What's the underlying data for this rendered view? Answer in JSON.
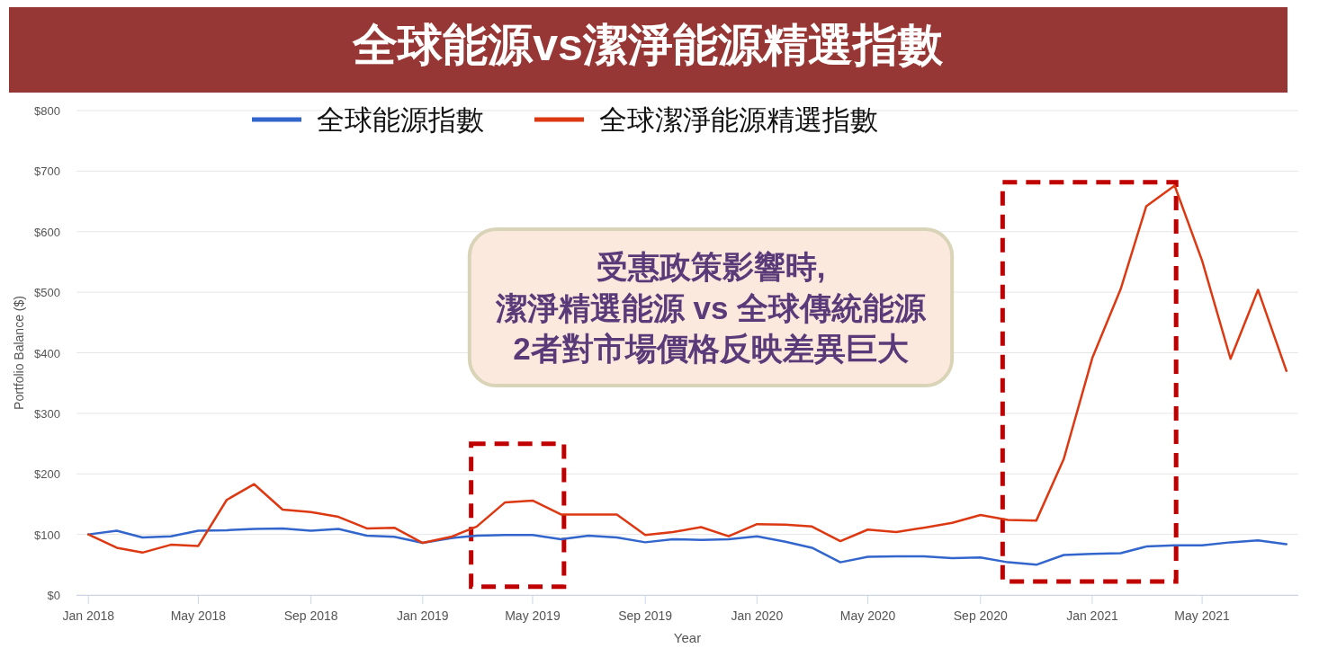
{
  "chart_data": {
    "type": "line",
    "title": "全球能源vs潔淨能源精選指數",
    "xlabel": "Year",
    "ylabel": "Portfolio Balance ($)",
    "annotations": [
      "受惠政策影響時,\n潔淨精選能源 vs 全球傳統能源\n2者對市場價格反映差異巨大"
    ],
    "x": [
      "2018-01",
      "2018-02",
      "2018-03",
      "2018-04",
      "2018-05",
      "2018-06",
      "2018-07",
      "2018-08",
      "2018-09",
      "2018-10",
      "2018-11",
      "2018-12",
      "2019-01",
      "2019-02",
      "2019-03",
      "2019-04",
      "2019-05",
      "2019-06",
      "2019-07",
      "2019-08",
      "2019-09",
      "2019-10",
      "2019-11",
      "2019-12",
      "2020-01",
      "2020-02",
      "2020-03",
      "2020-04",
      "2020-05",
      "2020-06",
      "2020-07",
      "2020-08",
      "2020-09",
      "2020-10",
      "2020-11",
      "2020-12",
      "2021-01",
      "2021-02",
      "2021-03",
      "2021-04",
      "2021-05",
      "2021-06",
      "2021-07",
      "2021-08"
    ],
    "series": [
      {
        "name": "全球能源指數",
        "color": "#3366cc",
        "values": [
          100,
          106,
          95,
          97,
          106,
          107,
          109,
          110,
          106,
          109,
          98,
          96,
          86,
          94,
          98,
          99,
          99,
          92,
          98,
          95,
          87,
          92,
          91,
          92,
          97,
          88,
          78,
          54,
          63,
          64,
          64,
          61,
          62,
          54,
          50,
          66,
          68,
          69,
          80,
          82,
          82,
          87,
          90,
          84
        ]
      },
      {
        "name": "全球潔淨能源精選指數",
        "color": "#dc3912",
        "values": [
          100,
          78,
          70,
          83,
          81,
          157,
          183,
          141,
          137,
          129,
          110,
          111,
          86,
          96,
          113,
          153,
          156,
          133,
          133,
          133,
          99,
          104,
          112,
          97,
          117,
          116,
          113,
          89,
          108,
          104,
          111,
          119,
          132,
          124,
          123,
          225,
          391,
          505,
          642,
          676,
          552,
          390,
          504,
          370
        ]
      }
    ],
    "xlim": [
      "2017-12-19",
      "2021-08-14"
    ],
    "xticks": [
      {
        "value": "2018-01",
        "label": "Jan 2018"
      },
      {
        "value": "2018-05",
        "label": "May 2018"
      },
      {
        "value": "2018-09",
        "label": "Sep 2018"
      },
      {
        "value": "2019-01",
        "label": "Jan 2019"
      },
      {
        "value": "2019-05",
        "label": "May 2019"
      },
      {
        "value": "2019-09",
        "label": "Sep 2019"
      },
      {
        "value": "2020-01",
        "label": "Jan 2020"
      },
      {
        "value": "2020-05",
        "label": "May 2020"
      },
      {
        "value": "2020-09",
        "label": "Sep 2020"
      },
      {
        "value": "2021-01",
        "label": "Jan 2021"
      },
      {
        "value": "2021-05",
        "label": "May 2021"
      }
    ],
    "ylim": [
      0,
      800
    ],
    "yticks": [
      {
        "value": 0,
        "label": "$0"
      },
      {
        "value": 100,
        "label": "$100"
      },
      {
        "value": 200,
        "label": "$200"
      },
      {
        "value": 300,
        "label": "$300"
      },
      {
        "value": 400,
        "label": "$400"
      },
      {
        "value": 500,
        "label": "$500"
      },
      {
        "value": 600,
        "label": "$600"
      },
      {
        "value": 700,
        "label": "$700"
      },
      {
        "value": 800,
        "label": "$800"
      }
    ],
    "grid": "y",
    "legend": "top",
    "line_style": "solid"
  }
}
